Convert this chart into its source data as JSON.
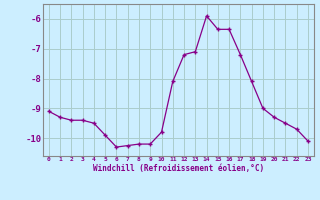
{
  "x": [
    0,
    1,
    2,
    3,
    4,
    5,
    6,
    7,
    8,
    9,
    10,
    11,
    12,
    13,
    14,
    15,
    16,
    17,
    18,
    19,
    20,
    21,
    22,
    23
  ],
  "y": [
    -9.1,
    -9.3,
    -9.4,
    -9.4,
    -9.5,
    -9.9,
    -10.3,
    -10.25,
    -10.2,
    -10.2,
    -9.8,
    -8.1,
    -7.2,
    -7.1,
    -5.9,
    -6.35,
    -6.35,
    -7.2,
    -8.1,
    -9.0,
    -9.3,
    -9.5,
    -9.7,
    -10.1
  ],
  "line_color": "#880088",
  "marker": "+",
  "marker_color": "#880088",
  "bg_color": "#cceeff",
  "grid_color": "#aacccc",
  "xlabel": "Windchill (Refroidissement éolien,°C)",
  "xlabel_color": "#880088",
  "tick_color": "#880088",
  "ylim": [
    -10.6,
    -5.5
  ],
  "yticks": [
    -10,
    -9,
    -8,
    -7,
    -6
  ],
  "xlim": [
    -0.5,
    23.5
  ],
  "xticks": [
    0,
    1,
    2,
    3,
    4,
    5,
    6,
    7,
    8,
    9,
    10,
    11,
    12,
    13,
    14,
    15,
    16,
    17,
    18,
    19,
    20,
    21,
    22,
    23
  ],
  "spine_color": "#888888",
  "figsize": [
    3.2,
    2.0
  ],
  "dpi": 100
}
